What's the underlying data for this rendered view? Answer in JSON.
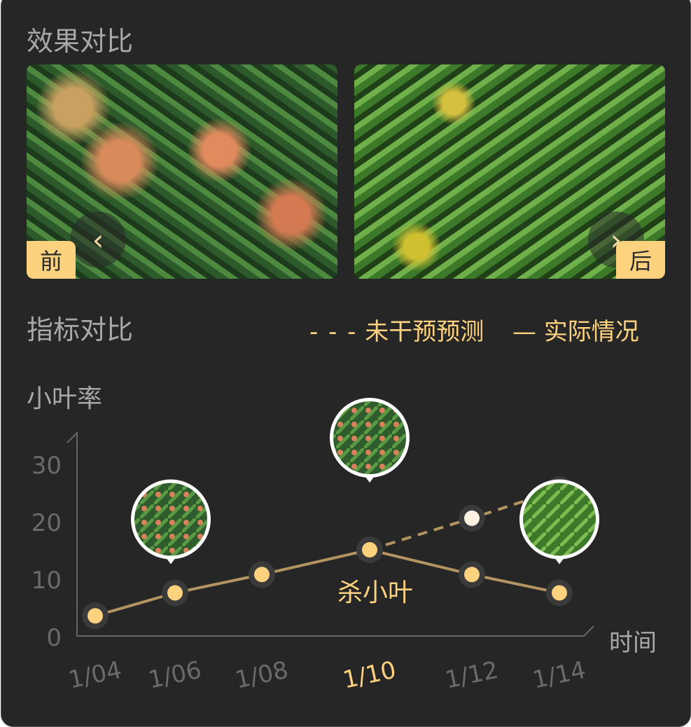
{
  "section1": {
    "title": "效果对比",
    "before_label": "前",
    "after_label": "后",
    "prev_icon": "chevron-left-icon",
    "next_icon": "chevron-right-icon"
  },
  "section2": {
    "title": "指标对比",
    "legend": [
      {
        "label": "未干预预测",
        "style": "dashed"
      },
      {
        "label": "实际情况",
        "style": "solid"
      }
    ]
  },
  "colors": {
    "accent": "#fdd27e",
    "line": "#b39461",
    "background": "#262626",
    "predicted_point": "#fdf1e2"
  },
  "chart_data": {
    "type": "line",
    "ylabel": "小叶率",
    "xlabel": "时间",
    "categories": [
      "1/04",
      "1/06",
      "1/08",
      "1/10",
      "1/12",
      "1/14"
    ],
    "highlight_category": "1/10",
    "yticks": [
      0,
      10,
      20,
      30
    ],
    "ylim": [
      0,
      30
    ],
    "series": [
      {
        "name": "实际情况",
        "style": "solid",
        "values": [
          3.5,
          7.5,
          10.7,
          15,
          10.7,
          7.5
        ]
      },
      {
        "name": "未干预预测",
        "style": "dashed",
        "values": [
          null,
          null,
          null,
          15,
          20.5,
          25.5
        ]
      }
    ],
    "annotations": [
      {
        "category": "1/10",
        "text": "杀小叶"
      }
    ],
    "photo_markers": [
      "1/06",
      "1/10",
      "1/14"
    ]
  }
}
